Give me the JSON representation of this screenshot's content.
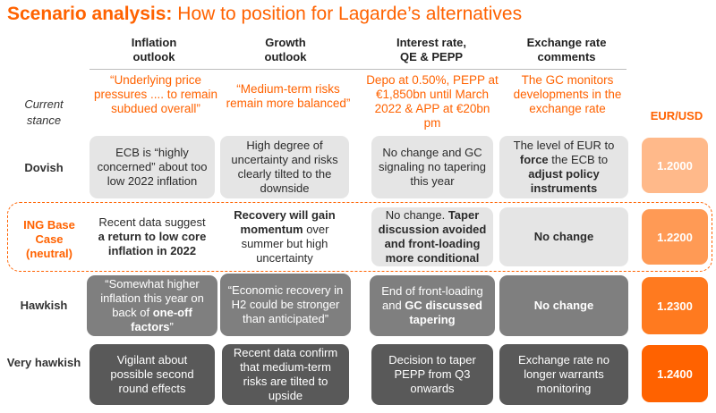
{
  "title": {
    "bold": "Scenario analysis:",
    "rest": " How to position for Lagarde’s alternatives"
  },
  "columns": [
    {
      "line1": "Inflation",
      "line2": "outlook"
    },
    {
      "line1": "Growth",
      "line2": "outlook"
    },
    {
      "line1": "Interest rate,",
      "line2": "QE & PEPP"
    },
    {
      "line1": "Exchange rate",
      "line2": "comments"
    }
  ],
  "current_stance": {
    "label_line1": "Current",
    "label_line2": "stance",
    "inflation": "“Underlying price pressures .... to remain subdued overall”",
    "growth": "“Medium-term risks remain more balanced”",
    "rates": "Depo at 0.50%, PEPP at €1,850bn until March 2022 & APP at €20bn pm",
    "fx": "The GC monitors developments in the exchange rate"
  },
  "eurusd_header": "EUR/USD",
  "rows": [
    {
      "label": "Dovish",
      "inflation": {
        "a": "ECB is “highly concerned” about too low 2022 inflation"
      },
      "growth": {
        "a": "High degree of uncertainty and risks clearly tilted to the downside"
      },
      "rates": {
        "a": "No change and GC signaling no tapering this year"
      },
      "fx": {
        "a": "The level of EUR to ",
        "b": "force",
        "c": " the ECB to ",
        "d": "adjust policy instruments"
      },
      "eurusd": "1.2000",
      "eurusd_color": "#ffb98a"
    },
    {
      "label": "ING Base Case (neutral)",
      "inflation": {
        "a": "Recent data suggest ",
        "b": "a return to low core inflation in 2022"
      },
      "growth": {
        "a": "Recovery will gain momentum",
        "b": " over summer but high uncertainty"
      },
      "rates": {
        "a": "No change. ",
        "b": "Taper discussion avoided and front-loading more conditional"
      },
      "fx": {
        "a": "No change"
      },
      "eurusd": "1.2200",
      "eurusd_color": "#ff9a55"
    },
    {
      "label": "Hawkish",
      "inflation": {
        "a": "“Somewhat higher inflation this year on back of ",
        "b": "one-off factors",
        "c": "”"
      },
      "growth": {
        "a": "“Economic recovery in H2 could be stronger than anticipated”"
      },
      "rates": {
        "a": "End of front-loading and ",
        "b": "GC discussed tapering"
      },
      "fx": {
        "a": "No change"
      },
      "eurusd": "1.2300",
      "eurusd_color": "#ff7a1f"
    },
    {
      "label": "Very hawkish",
      "inflation": {
        "a": "Vigilant about possible second round effects"
      },
      "growth": {
        "a": "Recent data confirm that medium-term risks are tilted to upside"
      },
      "rates": {
        "a": "Decision to taper PEPP from Q3 onwards"
      },
      "fx": {
        "a": "Exchange rate no longer warrants monitoring"
      },
      "eurusd": "1.2400",
      "eurusd_color": "#ff6200"
    }
  ]
}
